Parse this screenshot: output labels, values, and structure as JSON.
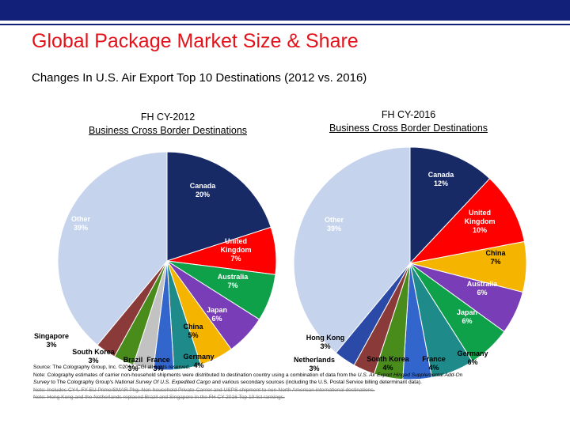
{
  "header": {
    "title": "Global Package Market Size & Share",
    "subtitle": "Changes In U.S. Air Export Top 10 Destinations (2012 vs. 2016)"
  },
  "colors": {
    "bar": "#12207a",
    "title": "#e3131b"
  },
  "chart_data": [
    {
      "type": "pie",
      "title_line1": "FH CY-2012",
      "title_line2": "Business Cross Border Destinations",
      "slices": [
        {
          "name": "Canada",
          "value": 20,
          "label": "20%",
          "color": "#172a66",
          "label_color": "#ffffff"
        },
        {
          "name": "United Kingdom",
          "value": 7,
          "label": "7%",
          "color": "#ff0000",
          "label_color": "#ffffff"
        },
        {
          "name": "Australia",
          "value": 7,
          "label": "7%",
          "color": "#0fa14a",
          "label_color": "#ffffff"
        },
        {
          "name": "Japan",
          "value": 6,
          "label": "6%",
          "color": "#7a3db8",
          "label_color": "#ffffff"
        },
        {
          "name": "China",
          "value": 5,
          "label": "5%",
          "color": "#f5b400",
          "label_color": "#000000"
        },
        {
          "name": "Germany",
          "value": 4,
          "label": "4%",
          "color": "#1f8a8a",
          "label_color": "#000000"
        },
        {
          "name": "France",
          "value": 3,
          "label": "3%",
          "color": "#3366cc",
          "label_color": "#000000"
        },
        {
          "name": "Brazil",
          "value": 3,
          "label": "3%",
          "color": "#c2c2c2",
          "label_color": "#000000"
        },
        {
          "name": "South Korea",
          "value": 3,
          "label": "3%",
          "color": "#4a8c1c",
          "label_color": "#000000"
        },
        {
          "name": "Singapore",
          "value": 3,
          "label": "3%",
          "color": "#8b3a3a",
          "label_color": "#000000"
        },
        {
          "name": "Other",
          "value": 39,
          "label": "39%",
          "color": "#c6d3ec",
          "label_color": "#ffffff"
        }
      ]
    },
    {
      "type": "pie",
      "title_line1": "FH CY-2016",
      "title_line2": "Business Cross Border Destinations",
      "slices": [
        {
          "name": "Canada",
          "value": 12,
          "label": "12%",
          "color": "#172a66",
          "label_color": "#ffffff"
        },
        {
          "name": "United Kingdom",
          "value": 10,
          "label": "10%",
          "color": "#ff0000",
          "label_color": "#ffffff"
        },
        {
          "name": "China",
          "value": 7,
          "label": "7%",
          "color": "#f5b400",
          "label_color": "#000000"
        },
        {
          "name": "Australia",
          "value": 6,
          "label": "6%",
          "color": "#7a3db8",
          "label_color": "#ffffff"
        },
        {
          "name": "Japan",
          "value": 6,
          "label": "6%",
          "color": "#0fa14a",
          "label_color": "#ffffff"
        },
        {
          "name": "Germany",
          "value": 6,
          "label": "6%",
          "color": "#1f8a8a",
          "label_color": "#000000"
        },
        {
          "name": "France",
          "value": 4,
          "label": "4%",
          "color": "#3366cc",
          "label_color": "#000000"
        },
        {
          "name": "South Korea",
          "value": 4,
          "label": "4%",
          "color": "#4a8c1c",
          "label_color": "#000000"
        },
        {
          "name": "Netherlands",
          "value": 3,
          "label": "3%",
          "color": "#8b3a3a",
          "label_color": "#000000"
        },
        {
          "name": "Hong Kong",
          "value": 3,
          "label": "3%",
          "color": "#2b4aa8",
          "label_color": "#000000"
        },
        {
          "name": "Other",
          "value": 39,
          "label": "39%",
          "color": "#c6d3ec",
          "label_color": "#ffffff"
        }
      ]
    }
  ],
  "footer": {
    "source": "Source: The Colography Group, Inc. ©2017. CGI all rights reserved.",
    "note1_a": "Note: Colography estimates of carrier non-household shipments were distributed to destination country using a combination of data from the ",
    "note1_b": "U.S. Air Export Hinged Supplemental Add-On",
    "note2_a": "Survey",
    "note2_b": " to The Colography Group's ",
    "note2_c": "National Survey Of U.S. Expedited Cargo",
    "note2_d": " and various secondary sources (including the U.S. Postal Service billing determinant data).",
    "note3": "Note: Includes CY4, FY-EU Prime/SMAR Pkg. Non-household Private-Carrier and USPS shipment to non-North American international destinations.",
    "note4": "Note: Hong Kong and the Netherlands replaced Brazil and Singapore in the FH CY-2016 Top 10 list rankings."
  }
}
